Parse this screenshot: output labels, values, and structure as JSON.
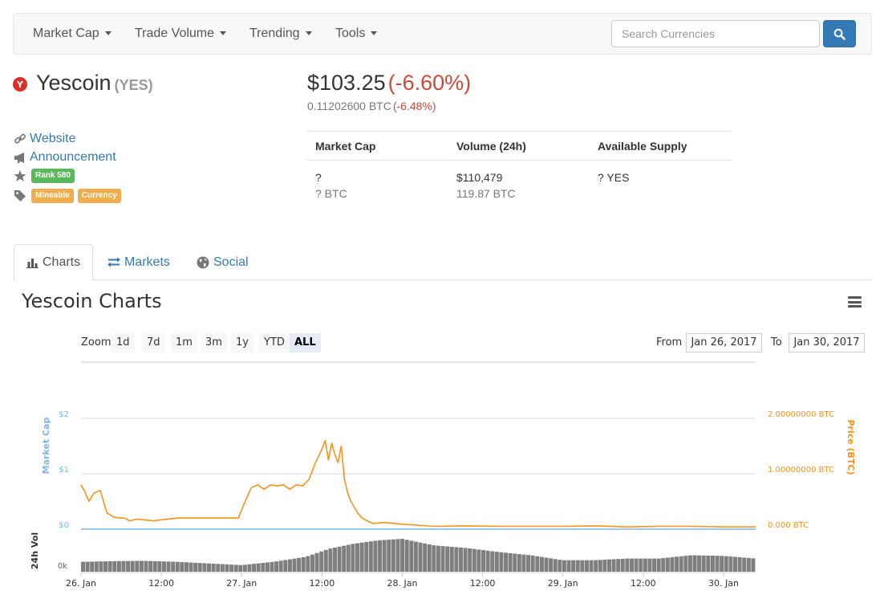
{
  "nav": {
    "items": [
      {
        "label": "Market Cap"
      },
      {
        "label": "Trade Volume"
      },
      {
        "label": "Trending"
      },
      {
        "label": "Tools"
      }
    ],
    "search_placeholder": "Search Currencies"
  },
  "coin": {
    "name": "Yescoin",
    "symbol": "(YES)",
    "price_usd": "$103.25",
    "change_usd": "(-6.60%)",
    "price_btc": "0.11202600 BTC",
    "change_btc": "(-6.48%)"
  },
  "links": {
    "website": "Website",
    "announcement": "Announcement",
    "rank": "Rank 580",
    "tags": [
      "Mineable",
      "Currency"
    ]
  },
  "stats": {
    "headers": [
      "Market Cap",
      "Volume (24h)",
      "Available Supply"
    ],
    "market_cap_usd": "?",
    "market_cap_btc": "? BTC",
    "volume_usd": "$110,479",
    "volume_btc": "119.87 BTC",
    "supply": "? YES"
  },
  "tabs": [
    {
      "label": "Charts",
      "active": true
    },
    {
      "label": "Markets",
      "active": false
    },
    {
      "label": "Social",
      "active": false
    }
  ],
  "chart": {
    "title": "Yescoin Charts",
    "zoom_label": "Zoom",
    "zoom_options": [
      "1d",
      "7d",
      "1m",
      "3m",
      "1y",
      "YTD",
      "ALL"
    ],
    "zoom_selected": "ALL",
    "from_label": "From",
    "to_label": "To",
    "from_date": "Jan 26, 2017",
    "to_date": "Jan 30, 2017",
    "left_axis_title": "Market Cap",
    "right_axis_title": "Price (BTC)",
    "volume_axis_title": "24h Vol",
    "colors": {
      "market_cap": "#7cb5ec",
      "price": "#f7931a",
      "volume": "#7f7f7f"
    }
  },
  "chart_data": {
    "type": "line",
    "title": "Yescoin Charts",
    "x_tick_labels": [
      "26. Jan",
      "12:00",
      "27. Jan",
      "12:00",
      "28. Jan",
      "12:00",
      "29. Jan",
      "12:00",
      "30. Jan"
    ],
    "left_axis": {
      "label": "Market Cap",
      "ticks": [
        "$2",
        "$1",
        "$0"
      ]
    },
    "right_axis": {
      "label": "Price (BTC)",
      "ticks": [
        "2.00000000 BTC",
        "1.00000000 BTC",
        "0.000 BTC"
      ],
      "ylim": [
        0,
        2
      ]
    },
    "volume_axis": {
      "label": "24h Vol",
      "ticks": [
        "0k"
      ]
    },
    "series": [
      {
        "name": "Price (BTC)",
        "x_days": [
          0,
          0.02,
          0.05,
          0.08,
          0.12,
          0.16,
          0.2,
          0.24,
          0.27,
          0.3,
          0.35,
          0.45,
          0.6,
          0.75,
          0.9,
          0.98,
          1.0,
          1.03,
          1.06,
          1.1,
          1.14,
          1.18,
          1.22,
          1.26,
          1.3,
          1.34,
          1.38,
          1.42,
          1.46,
          1.5,
          1.52,
          1.54,
          1.56,
          1.58,
          1.6,
          1.62,
          1.64,
          1.66,
          1.68,
          1.7,
          1.72,
          1.75,
          1.78,
          1.82,
          1.88,
          1.95,
          2.05,
          2.2,
          2.4,
          2.6,
          2.8,
          3.0,
          3.2,
          3.4,
          3.6,
          3.8,
          4.0,
          4.2
        ],
        "values": [
          0.8,
          0.7,
          0.5,
          0.65,
          0.7,
          0.3,
          0.22,
          0.2,
          0.2,
          0.15,
          0.18,
          0.15,
          0.2,
          0.2,
          0.2,
          0.2,
          0.35,
          0.55,
          0.75,
          0.8,
          0.72,
          0.8,
          0.78,
          0.8,
          0.72,
          0.8,
          0.78,
          0.9,
          1.2,
          1.45,
          1.6,
          1.25,
          1.55,
          1.35,
          1.2,
          1.5,
          0.9,
          0.65,
          0.5,
          0.4,
          0.3,
          0.2,
          0.15,
          0.1,
          0.12,
          0.1,
          0.08,
          0.05,
          0.06,
          0.05,
          0.05,
          0.05,
          0.06,
          0.04,
          0.05,
          0.05,
          0.04,
          0.04
        ]
      },
      {
        "name": "24h Vol",
        "x_days": [
          0,
          0.2,
          0.4,
          0.6,
          0.8,
          1.0,
          1.2,
          1.4,
          1.55,
          1.7,
          1.85,
          2.0,
          2.2,
          2.4,
          2.6,
          2.8,
          3.0,
          3.2,
          3.4,
          3.6,
          3.8,
          4.0,
          4.2
        ],
        "values": [
          0.3,
          0.32,
          0.33,
          0.3,
          0.25,
          0.2,
          0.3,
          0.45,
          0.7,
          0.85,
          0.95,
          1.0,
          0.8,
          0.72,
          0.6,
          0.5,
          0.35,
          0.35,
          0.4,
          0.4,
          0.5,
          0.48,
          0.4
        ]
      }
    ]
  }
}
